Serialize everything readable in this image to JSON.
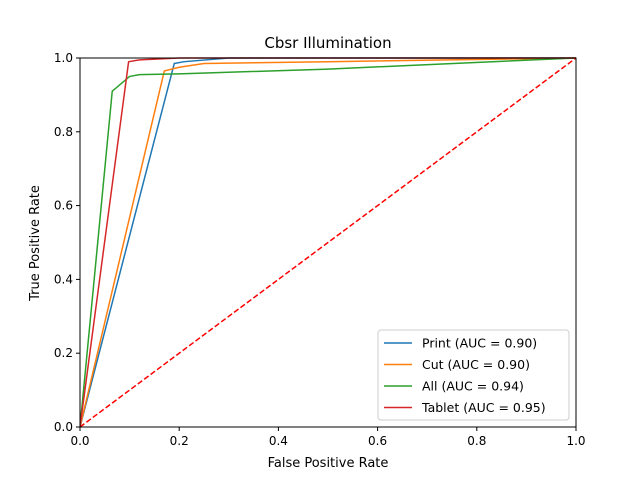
{
  "chart_data": {
    "type": "line",
    "title": "Cbsr Illumination",
    "xlabel": "False Positive Rate",
    "ylabel": "True Positive Rate",
    "xlim": [
      0,
      1
    ],
    "ylim": [
      0,
      1
    ],
    "xticks": [
      "0.0",
      "0.2",
      "0.4",
      "0.6",
      "0.8",
      "1.0"
    ],
    "yticks": [
      "0.0",
      "0.2",
      "0.4",
      "0.6",
      "0.8",
      "1.0"
    ],
    "grid": false,
    "legend_position": "bottom-right",
    "series": [
      {
        "name": "Print (AUC = 0.90)",
        "color": "#1f77b4",
        "points": [
          [
            0.0,
            0.0
          ],
          [
            0.19,
            0.985
          ],
          [
            0.21,
            0.99
          ],
          [
            0.3,
            1.0
          ],
          [
            1.0,
            1.0
          ]
        ]
      },
      {
        "name": "Cut (AUC = 0.90)",
        "color": "#ff7f0e",
        "points": [
          [
            0.0,
            0.0
          ],
          [
            0.17,
            0.965
          ],
          [
            0.2,
            0.975
          ],
          [
            0.25,
            0.985
          ],
          [
            0.5,
            0.99
          ],
          [
            1.0,
            1.0
          ]
        ]
      },
      {
        "name": "All (AUC = 0.94)",
        "color": "#2ca02c",
        "points": [
          [
            0.0,
            0.0
          ],
          [
            0.065,
            0.91
          ],
          [
            0.1,
            0.95
          ],
          [
            0.12,
            0.955
          ],
          [
            0.2,
            0.957
          ],
          [
            0.5,
            0.97
          ],
          [
            1.0,
            1.0
          ]
        ]
      },
      {
        "name": "Tablet (AUC = 0.95)",
        "color": "#d62728",
        "points": [
          [
            0.0,
            0.0
          ],
          [
            0.098,
            0.99
          ],
          [
            0.12,
            0.995
          ],
          [
            0.2,
            1.0
          ],
          [
            1.0,
            1.0
          ]
        ]
      }
    ],
    "reference_line": {
      "color": "#ff0000",
      "style": "dashed",
      "points": [
        [
          0.0,
          0.0
        ],
        [
          1.0,
          1.0
        ]
      ]
    }
  }
}
